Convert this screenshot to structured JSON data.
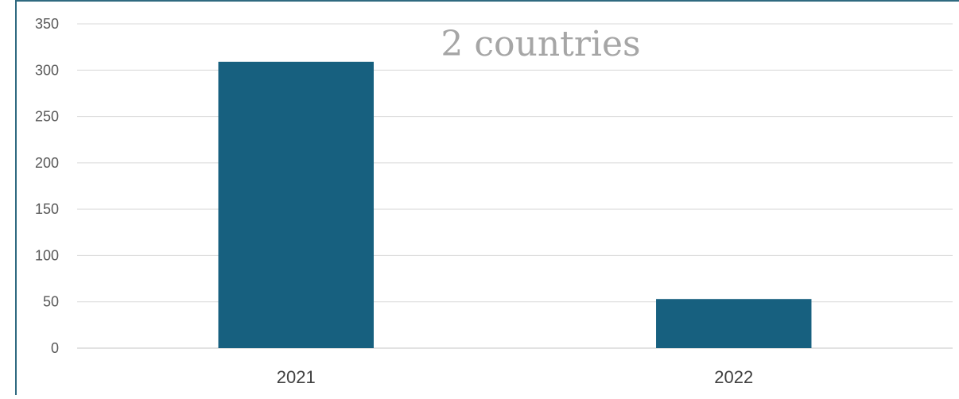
{
  "chart_data": {
    "type": "bar",
    "title": "2 countries",
    "categories": [
      "2021",
      "2022"
    ],
    "values": [
      309,
      53
    ],
    "xlabel": "",
    "ylabel": "",
    "ylim": [
      0,
      350
    ],
    "yticks": [
      0,
      50,
      100,
      150,
      200,
      250,
      300,
      350
    ],
    "grid": true,
    "legend": "none",
    "bar_color": "#17607F",
    "grid_color": "#D9D9D9",
    "frame_color": "#2F6A80"
  }
}
